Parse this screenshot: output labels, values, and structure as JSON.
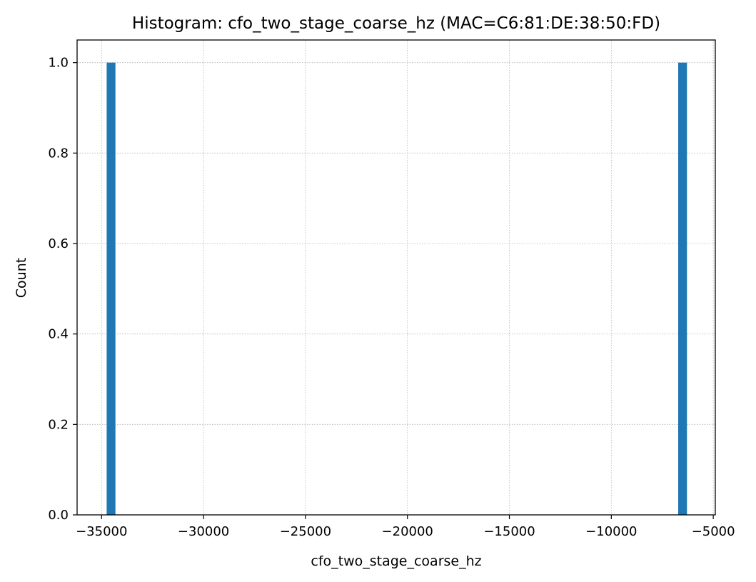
{
  "chart_data": {
    "type": "bar",
    "title": "Histogram: cfo_two_stage_coarse_hz (MAC=C6:81:DE:38:50:FD)",
    "xlabel": "cfo_two_stage_coarse_hz",
    "ylabel": "Count",
    "xlim": [
      -36200,
      -4900
    ],
    "ylim": [
      0,
      1.05
    ],
    "grid": true,
    "bar_color": "#1f77b4",
    "x_ticks": [
      -35000,
      -30000,
      -25000,
      -20000,
      -15000,
      -10000,
      -5000
    ],
    "x_tick_labels": [
      "−35000",
      "−30000",
      "−25000",
      "−20000",
      "−15000",
      "−10000",
      "−5000"
    ],
    "y_ticks": [
      0,
      0.2,
      0.4,
      0.6,
      0.8,
      1.0
    ],
    "y_tick_labels": [
      "0.0",
      "0.2",
      "0.4",
      "0.6",
      "0.8",
      "1.0"
    ],
    "bars": [
      {
        "x_start": -34750,
        "x_end": -34320,
        "count": 1
      },
      {
        "x_start": -6720,
        "x_end": -6290,
        "count": 1
      }
    ]
  }
}
